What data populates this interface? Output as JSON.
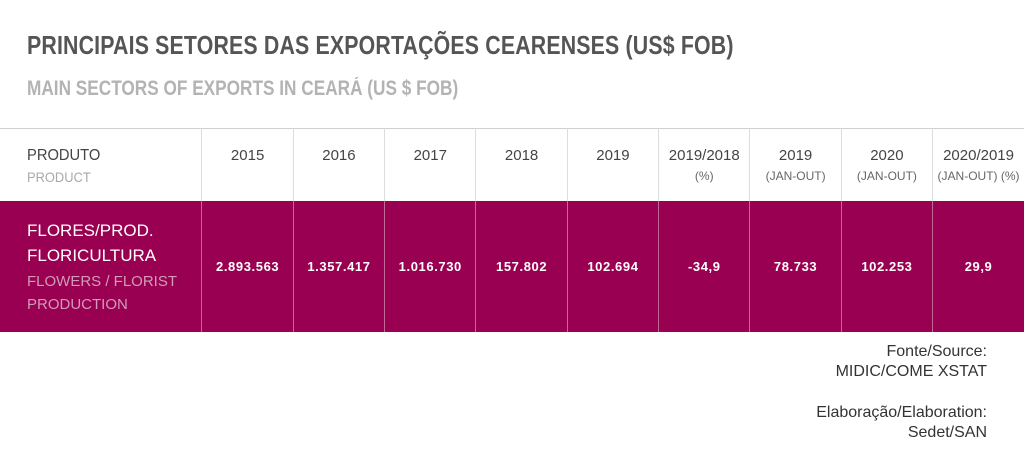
{
  "title": "PRINCIPAIS SETORES DAS EXPORTAÇÕES CEARENSES (US$ FOB)",
  "subtitle": "MAIN SECTORS OF EXPORTS IN CEARÁ (US $ FOB)",
  "table": {
    "product_header": {
      "main": "PRODUTO",
      "sub": "PRODUCT"
    },
    "columns": [
      {
        "main": "2015",
        "sub": ""
      },
      {
        "main": "2016",
        "sub": ""
      },
      {
        "main": "2017",
        "sub": ""
      },
      {
        "main": "2018",
        "sub": ""
      },
      {
        "main": "2019",
        "sub": ""
      },
      {
        "main": "2019/2018",
        "sub": "(%)"
      },
      {
        "main": "2019",
        "sub": "(JAN-OUT)"
      },
      {
        "main": "2020",
        "sub": "(JAN-OUT)"
      },
      {
        "main": "2020/2019",
        "sub": "(JAN-OUT) (%)"
      }
    ],
    "rows": [
      {
        "product": "FLORES/PROD. FLORICULTURA",
        "product_en": "FLOWERS / FLORIST PRODUCTION",
        "values": [
          "2.893.563",
          "1.357.417",
          "1.016.730",
          "157.802",
          "102.694",
          "-34,9",
          "78.733",
          "102.253",
          "29,9"
        ]
      }
    ],
    "row_color": "#9a0052"
  },
  "source": {
    "line1": "Fonte/Source:",
    "line2": "MIDIC/COME XSTAT",
    "line3": "Elaboração/Elaboration:",
    "line4": "Sedet/SAN"
  }
}
